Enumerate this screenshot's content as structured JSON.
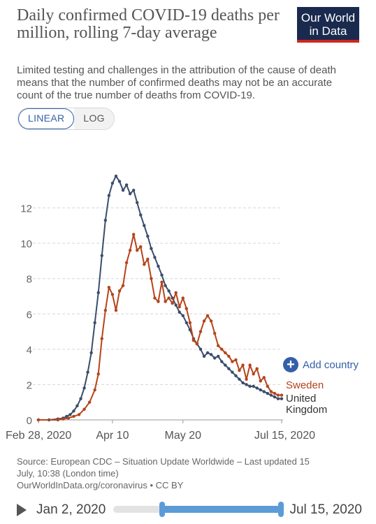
{
  "header": {
    "title": "Daily confirmed COVID-19 deaths per million, rolling 7-day average",
    "logo_line1": "Our World",
    "logo_line2": "in Data",
    "subtitle": "Limited testing and challenges in the attribution of the cause of death means that the number of confirmed deaths may not be an accurate count of the true number of deaths from COVID-19."
  },
  "scale_toggle": {
    "linear": "LINEAR",
    "log": "LOG",
    "selected": "LINEAR"
  },
  "add_country": "Add country",
  "colors": {
    "uk": "#3b4d6b",
    "sweden": "#b5441b",
    "accent": "#3360a9"
  },
  "chart_data": {
    "type": "line",
    "title": "Daily confirmed COVID-19 deaths per million, rolling 7-day average",
    "ylim": [
      0,
      14
    ],
    "y_ticks": [
      0,
      2,
      4,
      6,
      8,
      10,
      12
    ],
    "x_ticks": [
      "Feb 28, 2020",
      "Apr 10",
      "May 20",
      "Jul 15, 2020"
    ],
    "x_tick_dates": [
      "2020-02-28",
      "2020-04-10",
      "2020-05-20",
      "2020-07-15"
    ],
    "x_start": "2020-02-28",
    "x_end": "2020-07-15",
    "grid": true,
    "series": [
      {
        "name": "United Kingdom",
        "color": "#3b4d6b",
        "points": [
          [
            "2020-02-28",
            0
          ],
          [
            "2020-03-05",
            0
          ],
          [
            "2020-03-10",
            0.05
          ],
          [
            "2020-03-13",
            0.1
          ],
          [
            "2020-03-15",
            0.2
          ],
          [
            "2020-03-17",
            0.3
          ],
          [
            "2020-03-19",
            0.5
          ],
          [
            "2020-03-21",
            0.8
          ],
          [
            "2020-03-23",
            1.2
          ],
          [
            "2020-03-25",
            1.8
          ],
          [
            "2020-03-27",
            2.7
          ],
          [
            "2020-03-29",
            3.8
          ],
          [
            "2020-03-31",
            5.5
          ],
          [
            "2020-04-02",
            7.2
          ],
          [
            "2020-04-04",
            9.3
          ],
          [
            "2020-04-06",
            11.3
          ],
          [
            "2020-04-08",
            12.7
          ],
          [
            "2020-04-10",
            13.4
          ],
          [
            "2020-04-12",
            13.8
          ],
          [
            "2020-04-14",
            13.5
          ],
          [
            "2020-04-16",
            13.0
          ],
          [
            "2020-04-18",
            13.3
          ],
          [
            "2020-04-20",
            12.8
          ],
          [
            "2020-04-22",
            13.0
          ],
          [
            "2020-04-24",
            12.3
          ],
          [
            "2020-04-26",
            11.6
          ],
          [
            "2020-04-28",
            11.0
          ],
          [
            "2020-04-30",
            10.4
          ],
          [
            "2020-05-02",
            9.7
          ],
          [
            "2020-05-04",
            9.2
          ],
          [
            "2020-05-06",
            8.7
          ],
          [
            "2020-05-08",
            8.2
          ],
          [
            "2020-05-10",
            7.6
          ],
          [
            "2020-05-12",
            7.3
          ],
          [
            "2020-05-14",
            6.9
          ],
          [
            "2020-05-16",
            6.5
          ],
          [
            "2020-05-18",
            6.1
          ],
          [
            "2020-05-20",
            5.9
          ],
          [
            "2020-05-22",
            5.5
          ],
          [
            "2020-05-24",
            5.1
          ],
          [
            "2020-05-26",
            4.6
          ],
          [
            "2020-05-28",
            4.3
          ],
          [
            "2020-05-30",
            4.0
          ],
          [
            "2020-06-01",
            3.6
          ],
          [
            "2020-06-03",
            3.8
          ],
          [
            "2020-06-05",
            3.7
          ],
          [
            "2020-06-07",
            3.5
          ],
          [
            "2020-06-09",
            3.6
          ],
          [
            "2020-06-11",
            3.3
          ],
          [
            "2020-06-13",
            3.1
          ],
          [
            "2020-06-15",
            2.9
          ],
          [
            "2020-06-17",
            2.7
          ],
          [
            "2020-06-19",
            2.5
          ],
          [
            "2020-06-21",
            2.3
          ],
          [
            "2020-06-23",
            2.1
          ],
          [
            "2020-06-25",
            2.0
          ],
          [
            "2020-06-27",
            1.9
          ],
          [
            "2020-06-29",
            1.9
          ],
          [
            "2020-07-01",
            1.8
          ],
          [
            "2020-07-03",
            1.7
          ],
          [
            "2020-07-05",
            1.6
          ],
          [
            "2020-07-07",
            1.5
          ],
          [
            "2020-07-09",
            1.4
          ],
          [
            "2020-07-11",
            1.3
          ],
          [
            "2020-07-13",
            1.2
          ],
          [
            "2020-07-15",
            1.2
          ]
        ]
      },
      {
        "name": "Sweden",
        "color": "#b5441b",
        "points": [
          [
            "2020-02-28",
            0
          ],
          [
            "2020-03-10",
            0
          ],
          [
            "2020-03-13",
            0.05
          ],
          [
            "2020-03-16",
            0.1
          ],
          [
            "2020-03-19",
            0.2
          ],
          [
            "2020-03-22",
            0.3
          ],
          [
            "2020-03-25",
            0.6
          ],
          [
            "2020-03-28",
            1.0
          ],
          [
            "2020-03-31",
            1.7
          ],
          [
            "2020-04-02",
            2.6
          ],
          [
            "2020-04-04",
            4.6
          ],
          [
            "2020-04-06",
            6.2
          ],
          [
            "2020-04-08",
            7.5
          ],
          [
            "2020-04-10",
            7.1
          ],
          [
            "2020-04-12",
            6.2
          ],
          [
            "2020-04-14",
            7.3
          ],
          [
            "2020-04-16",
            7.6
          ],
          [
            "2020-04-18",
            8.9
          ],
          [
            "2020-04-20",
            9.6
          ],
          [
            "2020-04-22",
            10.5
          ],
          [
            "2020-04-24",
            9.6
          ],
          [
            "2020-04-26",
            9.8
          ],
          [
            "2020-04-28",
            8.8
          ],
          [
            "2020-04-30",
            9.1
          ],
          [
            "2020-05-02",
            8.0
          ],
          [
            "2020-05-04",
            6.9
          ],
          [
            "2020-05-06",
            6.7
          ],
          [
            "2020-05-08",
            7.8
          ],
          [
            "2020-05-10",
            6.7
          ],
          [
            "2020-05-12",
            6.9
          ],
          [
            "2020-05-14",
            6.6
          ],
          [
            "2020-05-16",
            7.2
          ],
          [
            "2020-05-18",
            6.4
          ],
          [
            "2020-05-20",
            6.9
          ],
          [
            "2020-05-22",
            6.3
          ],
          [
            "2020-05-24",
            5.5
          ],
          [
            "2020-05-26",
            4.5
          ],
          [
            "2020-05-28",
            4.3
          ],
          [
            "2020-05-30",
            5.0
          ],
          [
            "2020-06-01",
            5.6
          ],
          [
            "2020-06-03",
            5.9
          ],
          [
            "2020-06-05",
            5.6
          ],
          [
            "2020-06-07",
            4.9
          ],
          [
            "2020-06-09",
            4.2
          ],
          [
            "2020-06-11",
            4.0
          ],
          [
            "2020-06-13",
            3.8
          ],
          [
            "2020-06-15",
            3.6
          ],
          [
            "2020-06-17",
            3.3
          ],
          [
            "2020-06-19",
            3.4
          ],
          [
            "2020-06-21",
            2.8
          ],
          [
            "2020-06-23",
            3.1
          ],
          [
            "2020-06-25",
            2.3
          ],
          [
            "2020-06-27",
            3.1
          ],
          [
            "2020-06-29",
            2.6
          ],
          [
            "2020-07-01",
            2.9
          ],
          [
            "2020-07-03",
            2.2
          ],
          [
            "2020-07-05",
            2.4
          ],
          [
            "2020-07-07",
            1.9
          ],
          [
            "2020-07-09",
            1.6
          ],
          [
            "2020-07-11",
            1.5
          ],
          [
            "2020-07-13",
            1.4
          ],
          [
            "2020-07-15",
            1.4
          ]
        ]
      }
    ]
  },
  "legend": {
    "sweden": "Sweden",
    "uk_line1": "United",
    "uk_line2": "Kingdom"
  },
  "source": {
    "line1": "Source: European CDC – Situation Update Worldwide – Last updated 15",
    "line2": "July, 10:38 (London time)",
    "line3": "OurWorldInData.org/coronavirus • CC BY"
  },
  "timeline": {
    "start_label": "Jan 2, 2020",
    "end_label": "Jul 15, 2020",
    "range_start": "2020-02-28",
    "range_end": "2020-07-15"
  }
}
